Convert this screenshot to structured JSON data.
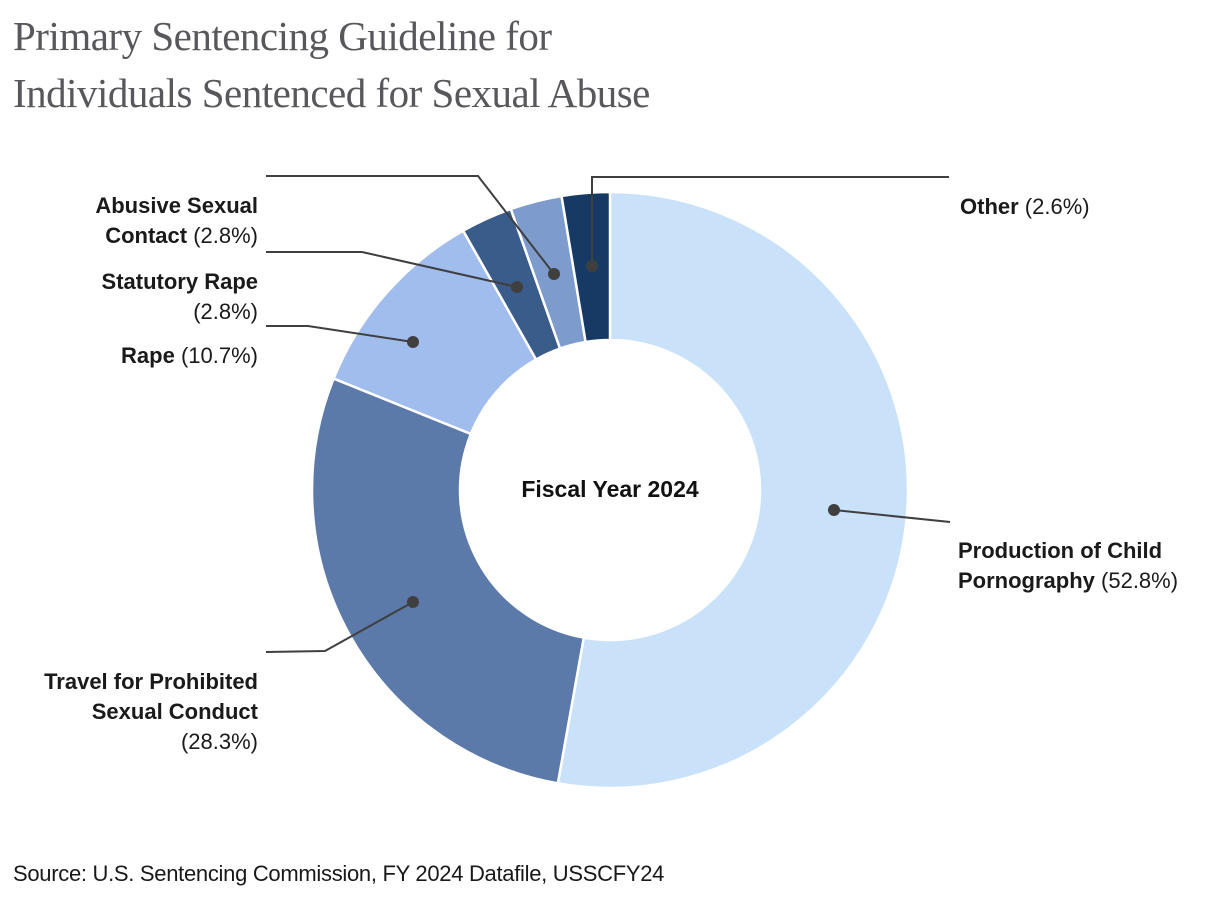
{
  "header": {
    "title_lines": [
      "Primary Sentencing Guideline for",
      "Individuals Sentenced for Sexual Abuse"
    ]
  },
  "chart_data": {
    "type": "pie",
    "subtype": "donut",
    "title": "Primary Sentencing Guideline for Individuals Sentenced for Sexual Abuse",
    "center_label": "Fiscal Year 2024",
    "categories": [
      "Production of Child Pornography",
      "Travel for Prohibited Sexual Conduct",
      "Rape",
      "Statutory Rape",
      "Abusive Sexual Contact",
      "Other"
    ],
    "values": [
      52.8,
      28.3,
      10.7,
      2.8,
      2.8,
      2.6
    ],
    "unit": "%",
    "colors": [
      "#C9E2FA",
      "#5B79A9",
      "#A1BDEE",
      "#3A5C8A",
      "#7E9BCD",
      "#173A64"
    ],
    "start_angle_deg": 0,
    "direction": "clockwise",
    "legend_position": "callout-labels",
    "leader_line_color": "#3F3F3F"
  },
  "labels": {
    "production": {
      "name": "Production of Child\nPornography",
      "value": " (52.8%)"
    },
    "travel": {
      "name": "Travel for Prohibited\nSexual Conduct",
      "value": "\n(28.3%)"
    },
    "rape": {
      "name": "Rape",
      "value": " (10.7%)"
    },
    "statutory": {
      "name": "Statutory Rape",
      "value": "\n(2.8%)"
    },
    "abusive": {
      "name": "Abusive Sexual\nContact",
      "value": " (2.8%)"
    },
    "other": {
      "name": "Other",
      "value": " (2.6%)"
    }
  },
  "center": {
    "label": "Fiscal Year 2024"
  },
  "source": {
    "text": "Source: U.S. Sentencing Commission, FY 2024 Datafile, USSCFY24"
  }
}
